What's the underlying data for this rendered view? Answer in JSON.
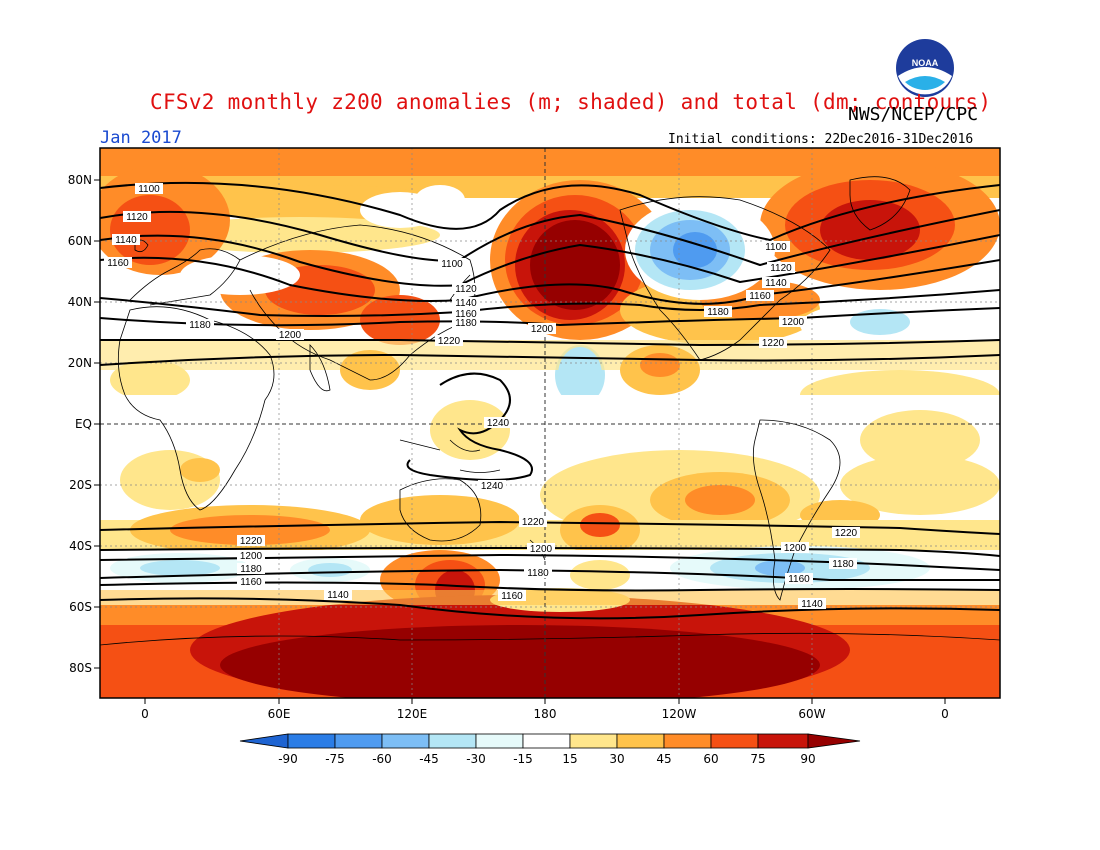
{
  "header": {
    "title": "CFSv2 monthly z200 anomalies (m; shaded) and total (dm; contours)",
    "month": "Jan 2017",
    "org": "NWS/NCEP/CPC",
    "initial_conditions": "Initial conditions: 22Dec2016-31Dec2016",
    "logo_text": "NOAA"
  },
  "axes": {
    "lat_labels": [
      "80N",
      "60N",
      "40N",
      "20N",
      "EQ",
      "20S",
      "40S",
      "60S",
      "80S"
    ],
    "lon_labels": [
      "0",
      "60E",
      "120E",
      "180",
      "120W",
      "60W",
      "0"
    ]
  },
  "colorbar": {
    "labels": [
      "-90",
      "-75",
      "-60",
      "-45",
      "-30",
      "-15",
      "15",
      "30",
      "45",
      "60",
      "75",
      "90"
    ],
    "colors": [
      "#1e64d2",
      "#2b7de6",
      "#4f9bf0",
      "#7dbef5",
      "#b4e6f5",
      "#e6fafa",
      "#ffffff",
      "#ffe68c",
      "#ffc34b",
      "#ff8c28",
      "#f55014",
      "#c8140a",
      "#960000"
    ]
  },
  "contours": [
    {
      "label": "1100"
    },
    {
      "label": "1120"
    },
    {
      "label": "1140"
    },
    {
      "label": "1160"
    },
    {
      "label": "1180"
    },
    {
      "label": "1200"
    },
    {
      "label": "1220"
    },
    {
      "label": "1240"
    }
  ]
}
